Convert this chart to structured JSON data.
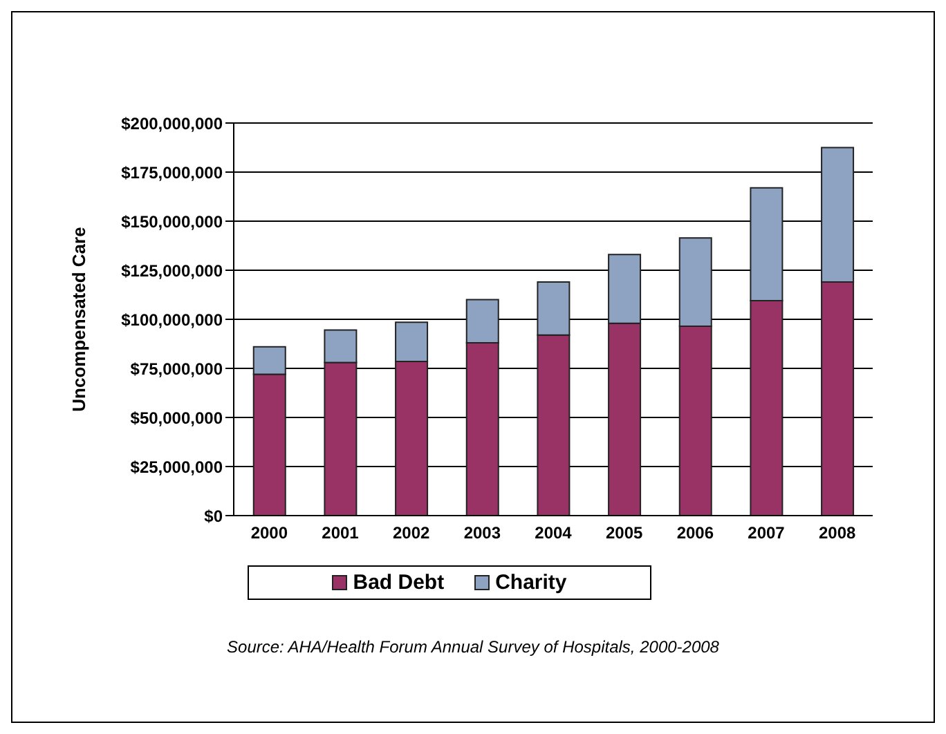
{
  "chart_data": {
    "type": "bar",
    "stacked": true,
    "ylabel": "Uncompensated Care",
    "categories": [
      "2000",
      "2001",
      "2002",
      "2003",
      "2004",
      "2005",
      "2006",
      "2007",
      "2008"
    ],
    "series": [
      {
        "name": "Bad Debt",
        "color": "#993366",
        "values": [
          72000000,
          78000000,
          78500000,
          88000000,
          92000000,
          98000000,
          96500000,
          109500000,
          119000000
        ]
      },
      {
        "name": "Charity",
        "color": "#8ea2c2",
        "values": [
          14000000,
          16500000,
          20000000,
          22000000,
          27000000,
          35000000,
          45000000,
          57500000,
          68500000
        ]
      }
    ],
    "ylim": [
      0,
      200000000
    ],
    "yticks": [
      {
        "value": 0,
        "label": "$0"
      },
      {
        "value": 25000000,
        "label": "$25,000,000"
      },
      {
        "value": 50000000,
        "label": "$50,000,000"
      },
      {
        "value": 75000000,
        "label": "$75,000,000"
      },
      {
        "value": 100000000,
        "label": "$100,000,000"
      },
      {
        "value": 125000000,
        "label": "$125,000,000"
      },
      {
        "value": 150000000,
        "label": "$150,000,000"
      },
      {
        "value": 175000000,
        "label": "$175,000,000"
      },
      {
        "value": 200000000,
        "label": "$200,000,000"
      }
    ],
    "grid": "y",
    "legend": "bottom",
    "annotations": [
      "Source: AHA/Health Forum Annual Survey of Hospitals, 2000-2008"
    ]
  }
}
